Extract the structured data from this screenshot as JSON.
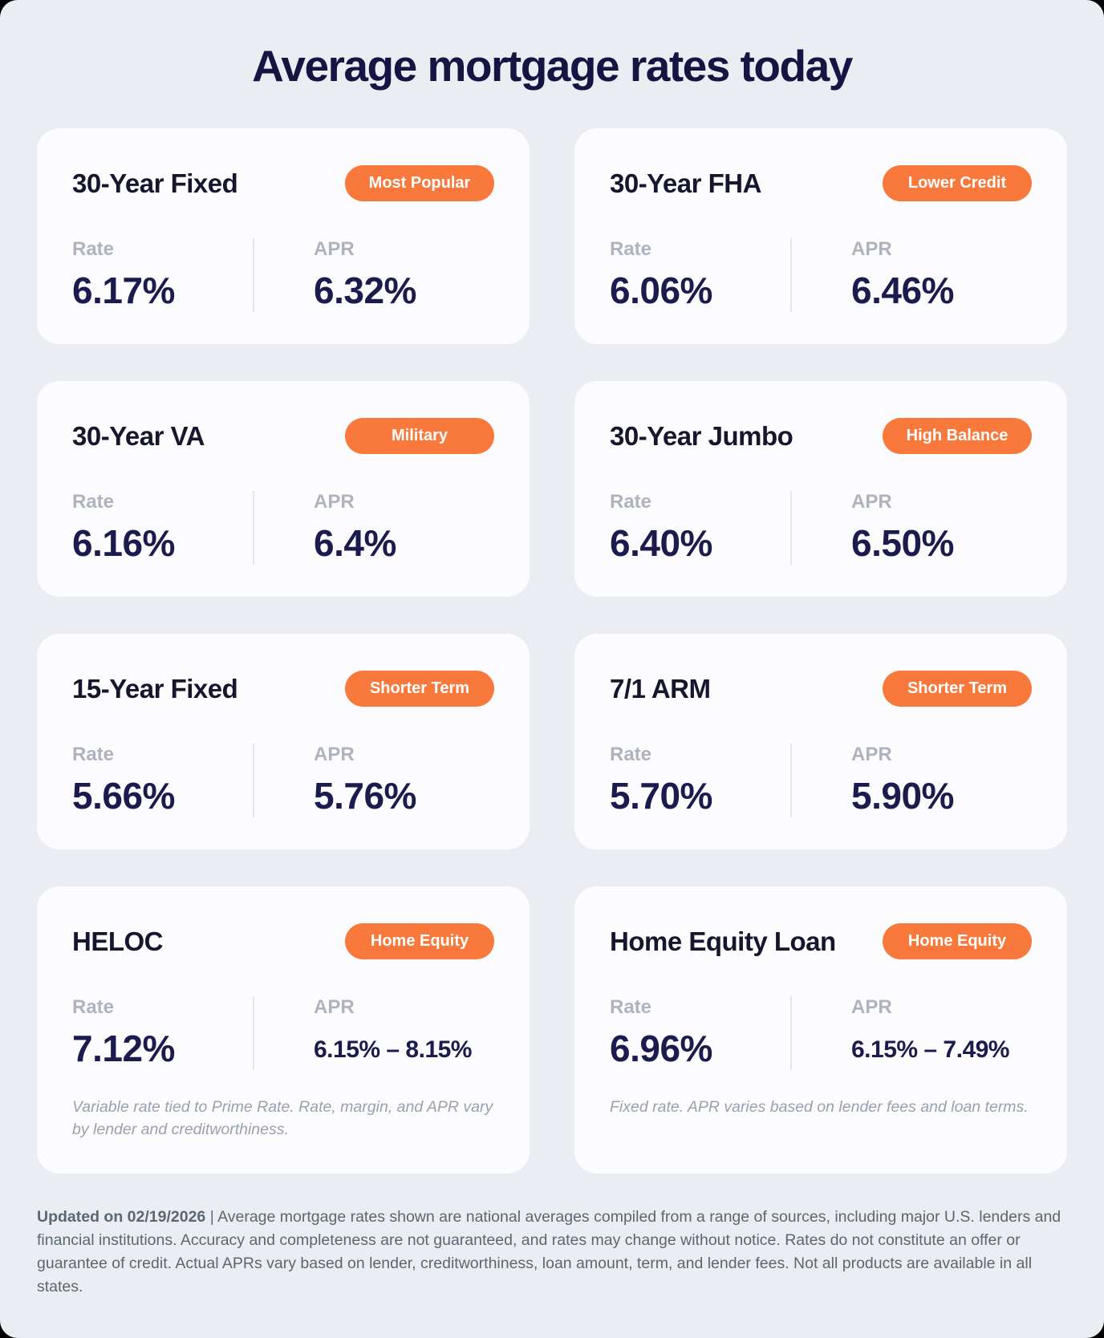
{
  "page": {
    "title": "Average mortgage rates today"
  },
  "labels": {
    "rate": "Rate",
    "apr": "APR"
  },
  "colors": {
    "background": "#EAEEF2",
    "card_background": "#FCFCFE",
    "badge_orange": "#F9793D",
    "value_navy": "#1B1B4E",
    "title_navy": "#151544",
    "label_gray": "#AEB3BE",
    "footnote_gray": "#99A1AD",
    "disclaimer_gray": "#5B6673"
  },
  "cards": [
    {
      "title": "30-Year Fixed",
      "badge": "Most Popular",
      "rate": "6.17%",
      "apr": "6.32%"
    },
    {
      "title": "30-Year FHA",
      "badge": "Lower Credit",
      "rate": "6.06%",
      "apr": "6.46%"
    },
    {
      "title": "30-Year VA",
      "badge": "Military",
      "rate": "6.16%",
      "apr": "6.4%"
    },
    {
      "title": "30-Year Jumbo",
      "badge": "High Balance",
      "rate": "6.40%",
      "apr": "6.50%"
    },
    {
      "title": "15-Year Fixed",
      "badge": "Shorter Term",
      "rate": "5.66%",
      "apr": "5.76%"
    },
    {
      "title": "7/1 ARM",
      "badge": "Shorter Term",
      "rate": "5.70%",
      "apr": "5.90%"
    },
    {
      "title": "HELOC",
      "badge": "Home Equity",
      "rate": "7.12%",
      "apr": "6.15% – 8.15%",
      "footnote": "Variable rate tied to Prime Rate. Rate, margin, and APR vary by lender and creditworthiness."
    },
    {
      "title": "Home Equity Loan",
      "badge": "Home Equity",
      "rate": "6.96%",
      "apr": "6.15% – 7.49%",
      "footnote": "Fixed rate. APR varies based on lender fees and loan terms."
    }
  ],
  "disclaimer": {
    "updated_label": "Updated on 02/19/2026",
    "body": "| Average mortgage rates shown are national averages compiled from a range of sources, including major U.S. lenders and financial institutions. Accuracy and completeness are not guaranteed, and rates may change without notice. Rates do not constitute an offer or guarantee of credit. Actual APRs vary based on lender, creditworthiness, loan amount, term, and lender fees. Not all products are available in all states."
  }
}
